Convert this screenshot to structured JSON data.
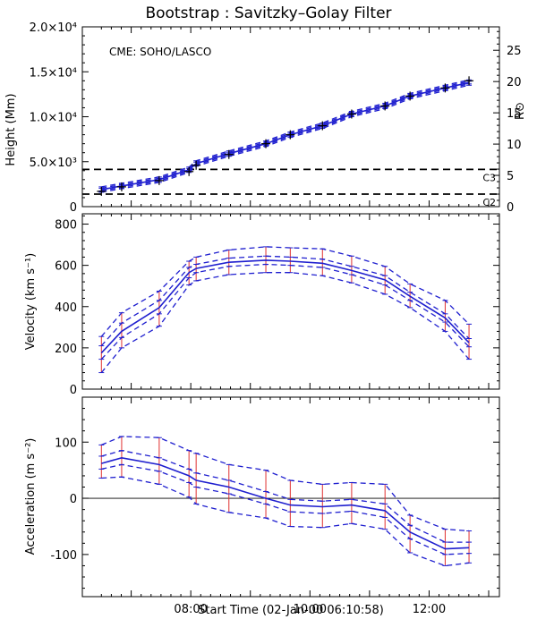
{
  "title": "Bootstrap : Savitzky–Golay Filter",
  "xlabel": "Start Time (02-Jan-00 06:10:58)",
  "x_ticks": [
    "08:00",
    "10:00",
    "12:00"
  ],
  "chart_data": [
    {
      "type": "line",
      "panel": "height",
      "ylabel": "Height (Mm)",
      "y2label": "R⊙",
      "annotation": "CME: SOHO/LASCO",
      "x_hours": [
        6.5,
        6.84,
        7.47,
        7.97,
        8.09,
        8.64,
        9.26,
        9.67,
        10.21,
        10.7,
        11.26,
        11.68,
        12.27,
        12.67
      ],
      "y_ticks": [
        "0",
        "5.0×10³",
        "1.0×10⁴",
        "1.5×10⁴",
        "2.0×10⁴"
      ],
      "y2_ticks": [
        "0",
        "5",
        "10",
        "15",
        "20",
        "25"
      ],
      "ylim": [
        0,
        20000
      ],
      "y2lim": [
        0,
        28.75
      ],
      "xlim": [
        6.18,
        13.18
      ],
      "observed": [
        1700,
        2200,
        2900,
        3900,
        4600,
        5800,
        7000,
        8000,
        9000,
        10300,
        11200,
        12300,
        13200,
        14000
      ],
      "series": [
        {
          "name": "fit",
          "values": [
            1900,
            2300,
            3000,
            4100,
            4800,
            5900,
            7000,
            8000,
            9000,
            10300,
            11200,
            12300,
            13200,
            13800
          ]
        },
        {
          "name": "upper-inner",
          "values": [
            2050,
            2450,
            3150,
            4250,
            4950,
            6050,
            7150,
            8150,
            9150,
            10450,
            11350,
            12450,
            13350,
            13950
          ]
        },
        {
          "name": "lower-inner",
          "values": [
            1750,
            2150,
            2850,
            3950,
            4650,
            5750,
            6850,
            7850,
            8850,
            10150,
            11050,
            12150,
            13050,
            13650
          ]
        },
        {
          "name": "upper-outer",
          "values": [
            2200,
            2600,
            3300,
            4400,
            5100,
            6200,
            7300,
            8300,
            9300,
            10600,
            11500,
            12600,
            13500,
            14100
          ]
        },
        {
          "name": "lower-outer",
          "values": [
            1600,
            2000,
            2700,
            3800,
            4500,
            5600,
            6700,
            7700,
            8700,
            10000,
            10900,
            12000,
            12900,
            13500
          ]
        }
      ],
      "reference_lines": [
        {
          "label": "C3",
          "value": 4140
        },
        {
          "label": "C2",
          "value": 1390
        }
      ]
    },
    {
      "type": "line",
      "panel": "velocity",
      "ylabel": "Velocity (km s⁻¹)",
      "y_ticks": [
        "0",
        "200",
        "400",
        "600",
        "800"
      ],
      "ylim": [
        0,
        850
      ],
      "xlim": [
        6.18,
        13.18
      ],
      "x_hours": [
        6.5,
        6.84,
        7.47,
        7.97,
        8.09,
        8.64,
        9.26,
        9.67,
        10.21,
        10.7,
        11.26,
        11.68,
        12.27,
        12.67
      ],
      "series": [
        {
          "name": "fit",
          "values": [
            175,
            280,
            395,
            565,
            585,
            615,
            625,
            620,
            610,
            575,
            530,
            450,
            345,
            225
          ]
        },
        {
          "name": "upper-inner",
          "values": [
            210,
            320,
            430,
            590,
            605,
            635,
            645,
            640,
            630,
            595,
            550,
            470,
            365,
            245
          ]
        },
        {
          "name": "lower-inner",
          "values": [
            145,
            250,
            365,
            540,
            565,
            595,
            605,
            600,
            590,
            555,
            505,
            430,
            325,
            205
          ]
        },
        {
          "name": "upper-outer",
          "values": [
            255,
            370,
            475,
            620,
            640,
            675,
            690,
            685,
            680,
            645,
            595,
            510,
            430,
            315
          ]
        },
        {
          "name": "lower-outer",
          "values": [
            80,
            200,
            305,
            505,
            525,
            555,
            565,
            565,
            550,
            515,
            460,
            395,
            280,
            145
          ]
        }
      ]
    },
    {
      "type": "line",
      "panel": "acceleration",
      "ylabel": "Acceleration (m s⁻²)",
      "y_ticks": [
        "-100",
        "0",
        "100"
      ],
      "ylim": [
        -175,
        180
      ],
      "xlim": [
        6.18,
        13.18
      ],
      "x_hours": [
        6.5,
        6.84,
        7.47,
        7.97,
        8.09,
        8.64,
        9.26,
        9.67,
        10.21,
        10.7,
        11.26,
        11.68,
        12.27,
        12.67
      ],
      "zero_line": 0,
      "series": [
        {
          "name": "fit",
          "values": [
            62,
            72,
            60,
            40,
            32,
            20,
            0,
            -12,
            -15,
            -12,
            -22,
            -60,
            -90,
            -88
          ]
        },
        {
          "name": "upper-inner",
          "values": [
            75,
            85,
            72,
            52,
            45,
            32,
            12,
            -2,
            -5,
            -2,
            -10,
            -48,
            -78,
            -78
          ]
        },
        {
          "name": "lower-inner",
          "values": [
            52,
            60,
            48,
            28,
            20,
            8,
            -10,
            -24,
            -27,
            -23,
            -34,
            -72,
            -100,
            -98
          ]
        },
        {
          "name": "upper-outer",
          "values": [
            95,
            110,
            108,
            85,
            80,
            60,
            50,
            32,
            25,
            28,
            25,
            -30,
            -55,
            -58
          ]
        },
        {
          "name": "lower-outer",
          "values": [
            36,
            38,
            25,
            2,
            -10,
            -25,
            -35,
            -50,
            -52,
            -45,
            -55,
            -97,
            -120,
            -115
          ]
        }
      ]
    }
  ]
}
